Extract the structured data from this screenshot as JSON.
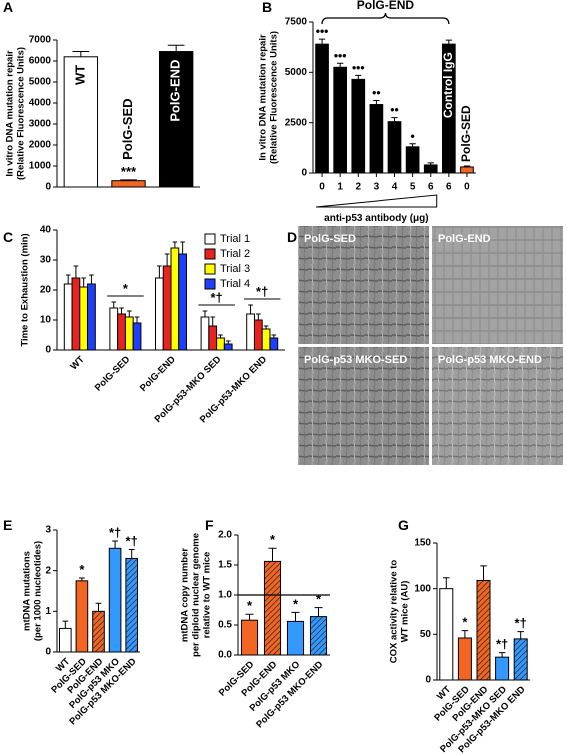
{
  "chart_data": [
    {
      "panel": "A",
      "type": "bar",
      "ylabel": [
        "In vitro DNA mutation repair",
        "(Relative Fluorescence Units)"
      ],
      "categories": [
        "WT",
        "PolG-SED",
        "PolG-END"
      ],
      "values": [
        6200,
        300,
        6450
      ],
      "errors": [
        250,
        40,
        300
      ],
      "colors": [
        "#ffffff",
        "#f26522",
        "#000000"
      ],
      "bar_labels": [
        null,
        "***",
        null
      ],
      "category_labels_inside": true,
      "ylim": [
        0,
        7000
      ],
      "yticks": [
        0,
        1000,
        2000,
        3000,
        4000,
        5000,
        6000,
        7000
      ]
    },
    {
      "panel": "B",
      "type": "bar",
      "ylabel": [
        "In vitro DNA mutation repair",
        "(Relative Fluorescence Units)"
      ],
      "group_label": "PolG-END",
      "xlabel": "anti-p53 antibody (μg)",
      "categories": [
        "0",
        "1",
        "2",
        "3",
        "4",
        "5",
        "6",
        "6",
        "0"
      ],
      "values": [
        6400,
        5250,
        4650,
        3400,
        2550,
        1300,
        400,
        6400,
        300
      ],
      "errors": [
        250,
        200,
        200,
        200,
        200,
        150,
        100,
        200,
        50
      ],
      "colors": [
        "#000000",
        "#000000",
        "#000000",
        "#000000",
        "#000000",
        "#000000",
        "#000000",
        "#000000",
        "#f26522"
      ],
      "bar_labels": [
        "•••",
        "•••",
        "•••",
        "••",
        "••",
        "•",
        null,
        "Control IgG",
        "PolG-SED"
      ],
      "ylim": [
        0,
        7500
      ],
      "yticks": [
        0,
        2500,
        5000,
        7500
      ]
    },
    {
      "panel": "C",
      "type": "grouped_bar",
      "ylabel": [
        "Time to Exhaustion (min)"
      ],
      "categories": [
        "WT",
        "PolG-SED",
        "PolG-END",
        "PolG-p53-MKO SED",
        "PolG-p53-MKO END"
      ],
      "series": [
        {
          "name": "Trial 1",
          "color": "#ffffff",
          "values": [
            22,
            14,
            24,
            11,
            12
          ],
          "errors": [
            3,
            2,
            4,
            2,
            3
          ]
        },
        {
          "name": "Trial 2",
          "color": "#e8231f",
          "values": [
            24,
            12,
            28,
            8,
            10
          ],
          "errors": [
            4,
            2,
            4,
            3,
            2
          ]
        },
        {
          "name": "Trial 3",
          "color": "#ffff00",
          "values": [
            21,
            11,
            34,
            4,
            7
          ],
          "errors": [
            3,
            2,
            2,
            1,
            1
          ]
        },
        {
          "name": "Trial 4",
          "color": "#1f3fff",
          "values": [
            22,
            9,
            32,
            2,
            4
          ],
          "errors": [
            3,
            2,
            4,
            1,
            1
          ]
        }
      ],
      "group_labels": [
        null,
        "*",
        null,
        "*†",
        "*†"
      ],
      "legend": "upper right",
      "ylim": [
        0,
        40
      ],
      "yticks": [
        0,
        10,
        20,
        30,
        40
      ]
    },
    {
      "panel": "E",
      "type": "bar",
      "ylabel": [
        "mtDNA mutations",
        "(per 1000 nucleotides)"
      ],
      "categories": [
        "WT",
        "PolG-SED",
        "PolG-END",
        "PolG-p53 MKO",
        "PolG-p53 MKO-END"
      ],
      "values": [
        0.58,
        1.75,
        1.0,
        2.55,
        2.3
      ],
      "errors": [
        0.18,
        0.07,
        0.2,
        0.18,
        0.22
      ],
      "colors": [
        "#ffffff",
        "#f26522",
        "#f26522",
        "#3399ff",
        "#3399ff"
      ],
      "hatch": [
        false,
        false,
        true,
        false,
        true
      ],
      "bar_labels": [
        null,
        "*",
        null,
        "*†",
        "*†"
      ],
      "ylim": [
        0,
        3
      ],
      "yticks": [
        0,
        1,
        2,
        3
      ]
    },
    {
      "panel": "F",
      "type": "bar",
      "ylabel": [
        "mtDNA copy number",
        "per diploid nuclear genome",
        "relative to WT mice"
      ],
      "categories": [
        "PolG-SED",
        "PolG-END",
        "PolG-p53 MKO",
        "PolG-p53 MKO-END"
      ],
      "values": [
        0.58,
        1.56,
        0.56,
        0.64
      ],
      "errors": [
        0.1,
        0.22,
        0.15,
        0.15
      ],
      "colors": [
        "#f26522",
        "#f26522",
        "#3399ff",
        "#3399ff"
      ],
      "hatch": [
        false,
        true,
        false,
        true
      ],
      "bar_labels": [
        "*",
        "*",
        "*",
        "*"
      ],
      "reference_line": 1,
      "ylim": [
        0,
        2
      ],
      "yticks": [
        {
          "value": 0,
          "label": "0.0"
        },
        {
          "value": 0.5,
          "label": "0.5"
        },
        {
          "value": 1,
          "label": "1.0"
        },
        {
          "value": 1.5,
          "label": "1.5"
        },
        {
          "value": 2,
          "label": "2.0"
        }
      ]
    },
    {
      "panel": "G",
      "type": "bar",
      "ylabel": [
        "COX activity relative to",
        "WT mice (AU)"
      ],
      "categories": [
        "WT",
        "PolG-SED",
        "PolG-END",
        "PolG-p53-MKO SED",
        "PolG-p53-MKO END"
      ],
      "values": [
        100,
        46,
        109,
        25,
        45
      ],
      "errors": [
        12,
        8,
        16,
        5,
        8
      ],
      "colors": [
        "#ffffff",
        "#f26522",
        "#f26522",
        "#3399ff",
        "#3399ff"
      ],
      "hatch": [
        false,
        false,
        true,
        false,
        true
      ],
      "bar_labels": [
        null,
        "*",
        null,
        "*†",
        "*†"
      ],
      "ylim": [
        0,
        150
      ],
      "yticks": [
        0,
        50,
        100,
        150
      ]
    }
  ],
  "image_panel": {
    "panel": "D",
    "labels": [
      "PolG-SED",
      "PolG-END",
      "PolG-p53 MKO-SED",
      "PolG-p53 MKO-END"
    ]
  }
}
